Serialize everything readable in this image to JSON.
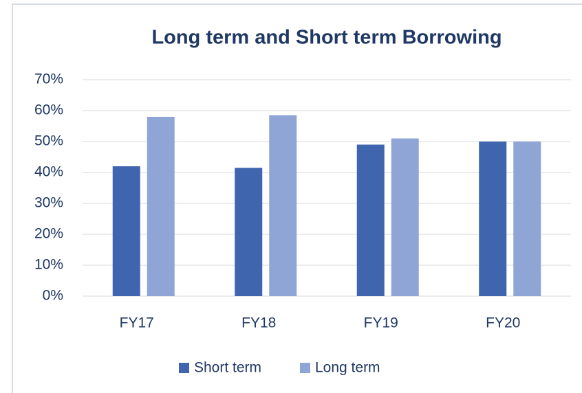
{
  "chart_data": {
    "type": "bar",
    "title": "Long term and Short term Borrowing",
    "categories": [
      "FY17",
      "FY18",
      "FY19",
      "FY20"
    ],
    "series": [
      {
        "name": "Short term",
        "color": "#3f65ae",
        "values": [
          42,
          41.5,
          49,
          50
        ]
      },
      {
        "name": "Long term",
        "color": "#8fa5d5",
        "values": [
          58,
          58.5,
          51,
          50
        ]
      }
    ],
    "ylim": [
      0,
      70
    ],
    "yticks": [
      {
        "value": 0,
        "label": "0%"
      },
      {
        "value": 10,
        "label": "10%"
      },
      {
        "value": 20,
        "label": "20%"
      },
      {
        "value": 30,
        "label": "30%"
      },
      {
        "value": 40,
        "label": "40%"
      },
      {
        "value": 50,
        "label": "50%"
      },
      {
        "value": 60,
        "label": "60%"
      },
      {
        "value": 70,
        "label": "70%"
      }
    ],
    "grid": true,
    "legend": "bottom"
  }
}
